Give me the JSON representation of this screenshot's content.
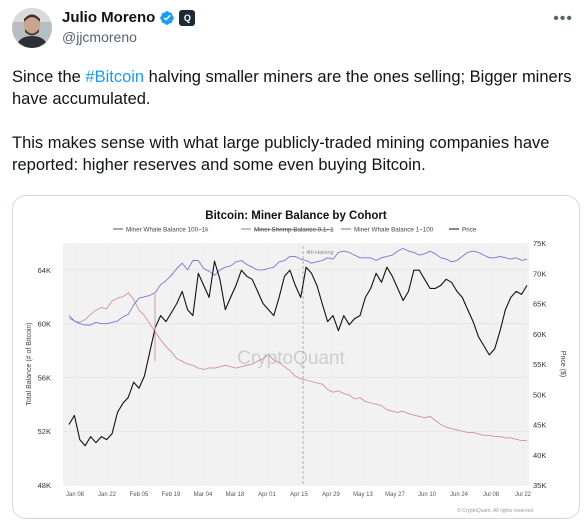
{
  "author": {
    "name": "Julio Moreno",
    "handle": "@jjcmoreno",
    "org_badge_text": "Q"
  },
  "icons": {
    "verified": "verified-badge-icon",
    "org": "affiliate-badge-icon",
    "more": "more-options-icon"
  },
  "colors": {
    "hashtag": "#1d9bf0",
    "verified": "#1d9bf0"
  },
  "tweet": {
    "p1_before": "Since the ",
    "p1_hashtag": "#Bitcoin",
    "p1_after": " halving smaller miners are the ones selling; Bigger miners have accumulated.",
    "p2": "This makes sense with what large publicly-traded mining companies have reported: higher reserves and some even buying Bitcoin."
  },
  "chart_data": {
    "type": "line",
    "title": "Bitcoin: Miner Balance by Cohort",
    "legend": [
      {
        "name": "Miner Whale Balance 100~1k",
        "color": "#555555"
      },
      {
        "name": "Miner Shrimp Balance 0.1~1",
        "color": "#888888",
        "strikethrough": true
      },
      {
        "name": "Miner Whale Balance 1~100",
        "color": "#777777"
      },
      {
        "name": "Price",
        "color": "#111111"
      }
    ],
    "ylabel": "Total Balance (# of Bitcoin)",
    "y2label": "Price ($)",
    "yticks": [
      "64K",
      "60K",
      "56K",
      "52K",
      "48K"
    ],
    "y2ticks": [
      "75K",
      "70K",
      "65K",
      "60K",
      "55K",
      "50K",
      "45K",
      "40K",
      "35K"
    ],
    "xticks": [
      "Jan 08",
      "Jan 22",
      "Feb 05",
      "Feb 19",
      "Mar 04",
      "Mar 18",
      "Apr 01",
      "Apr 15",
      "Apr 29",
      "May 13",
      "May 27",
      "Jun 10",
      "Jun 24",
      "Jul 08",
      "Jul 22"
    ],
    "ylim": [
      48000,
      66000
    ],
    "y2lim": [
      35000,
      75000
    ],
    "annotation": "4th Halving",
    "watermark": "CryptoQuant",
    "footer": "© CryptoQuant. All rights reserved",
    "series": [
      {
        "name": "Price",
        "color": "#111111",
        "axis": "right",
        "values": [
          45000,
          46500,
          42500,
          41500,
          43000,
          42000,
          43000,
          42500,
          43500,
          47000,
          48500,
          49500,
          52000,
          51000,
          53000,
          57000,
          61000,
          63000,
          62000,
          63500,
          65000,
          67000,
          64000,
          63000,
          70000,
          68000,
          66000,
          72000,
          69000,
          64000,
          66000,
          68000,
          70500,
          69500,
          69000,
          67000,
          65000,
          64000,
          63000,
          66000,
          69500,
          70500,
          68000,
          66000,
          71000,
          70000,
          68000,
          65000,
          62000,
          63000,
          60500,
          63000,
          61500,
          62500,
          63000,
          66000,
          67500,
          70000,
          68500,
          71000,
          69500,
          67500,
          65500,
          67000,
          70500,
          70500,
          69000,
          67500,
          67500,
          68000,
          69000,
          68500,
          67000,
          66000,
          64000,
          62000,
          59500,
          58000,
          56500,
          57500,
          60500,
          64000,
          66000,
          67000,
          66500,
          68000
        ],
        "start_x": "Jan 01",
        "end_x": "Jul 27"
      },
      {
        "name": "Miner Whale Balance 1~100",
        "color": "#7b73d6",
        "axis": "left",
        "values": [
          60600,
          60200,
          60000,
          59900,
          59900,
          60100,
          60000,
          60000,
          60100,
          60200,
          60500,
          60700,
          61400,
          61900,
          62000,
          62100,
          62300,
          62900,
          63200,
          63600,
          64100,
          64500,
          64000,
          64700,
          64700,
          64100,
          63900,
          63600,
          64000,
          64200,
          64300,
          64600,
          64700,
          64400,
          64200,
          64000,
          64000,
          64100,
          64200,
          64600,
          64700,
          65000,
          65000,
          64800,
          64700,
          64500,
          64600,
          64700,
          64900,
          64800,
          65300,
          65400,
          65300,
          65100,
          64900,
          64900,
          64900,
          64700,
          64900,
          65000,
          65100,
          65400,
          65600,
          65400,
          65300,
          65100,
          65200,
          65400,
          65200,
          64900,
          64800,
          64600,
          64700,
          65000,
          65300,
          65400,
          65300,
          65100,
          64900,
          64900,
          65000,
          64900,
          64800,
          64900,
          64700,
          64800
        ],
        "start_x": "Jan 01",
        "end_x": "Jul 27"
      },
      {
        "name": "Miner Whale Balance 100~1k",
        "color": "#d48da3",
        "axis": "left",
        "values": [
          60400,
          60200,
          60100,
          60300,
          60700,
          61000,
          61200,
          61100,
          61700,
          61900,
          62000,
          62300,
          61800,
          61000,
          60600,
          60000,
          59400,
          58800,
          58300,
          57900,
          57400,
          57200,
          57000,
          56900,
          56700,
          56600,
          56700,
          56700,
          56800,
          56900,
          56800,
          56700,
          56800,
          56900,
          57000,
          57200,
          57400,
          57700,
          57300,
          57100,
          56800,
          56500,
          56100,
          55900,
          55800,
          55700,
          55600,
          55500,
          55100,
          54900,
          55000,
          54800,
          54700,
          54400,
          54500,
          54200,
          54100,
          54000,
          53900,
          53600,
          53500,
          53400,
          53500,
          53300,
          53200,
          53100,
          53000,
          53100,
          52800,
          52500,
          52300,
          52200,
          52100,
          52000,
          51900,
          51900,
          51800,
          51700,
          51700,
          51600,
          51600,
          51500,
          51500,
          51400,
          51300,
          51300
        ],
        "start_x": "Jan 01",
        "end_x": "Jul 27"
      }
    ],
    "spike": {
      "series": "Miner Whale Balance 100~1k",
      "x": "Feb 12",
      "value": 62200
    }
  }
}
